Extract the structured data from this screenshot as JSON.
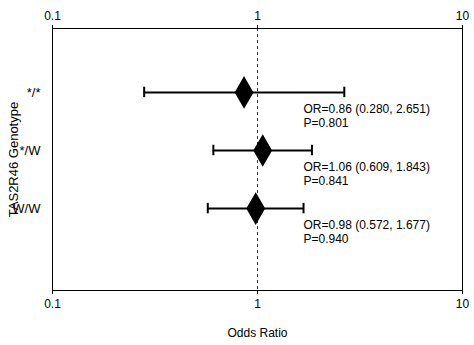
{
  "chart_data": {
    "type": "forest",
    "x_label": "Odds Ratio",
    "y_label": "TAS2R46 Genotype",
    "categories": [
      "*/*",
      "*/W",
      "W/W"
    ],
    "values": [
      0.86,
      1.06,
      0.98
    ],
    "ci_lower": [
      0.28,
      0.609,
      0.572
    ],
    "ci_upper": [
      2.651,
      1.843,
      1.677
    ],
    "annotations": [
      [
        "OR=0.86 (0.280, 2.651)",
        "P=0.801"
      ],
      [
        "OR=1.06 (0.609, 1.843)",
        "P=0.841"
      ],
      [
        "OR=0.98 (0.572, 1.677)",
        "P=0.940"
      ]
    ],
    "ref_line": 1,
    "xlim": [
      0.1,
      10
    ],
    "xticks": [
      0.1,
      1,
      10
    ],
    "log": "x",
    "marker": "diamond",
    "color": "#000000"
  }
}
